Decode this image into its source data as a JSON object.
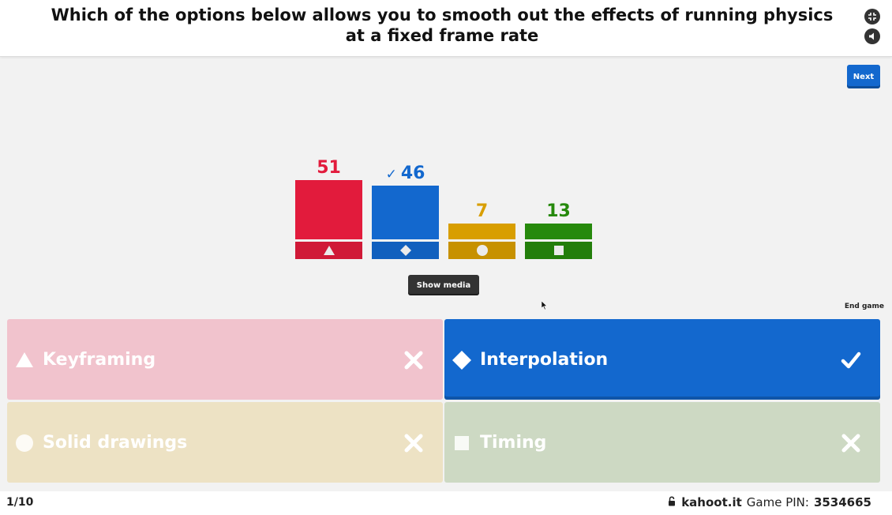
{
  "question": {
    "text": "Which of the options below allows you to smooth out the effects of running physics at a fixed frame rate"
  },
  "header_buttons": [
    {
      "icon": "fullscreen-exit-icon"
    },
    {
      "icon": "volume-icon"
    }
  ],
  "controls": {
    "next_label": "Next",
    "show_media_label": "Show media",
    "end_game_label": "End game"
  },
  "colors": {
    "red": "#e21b3c",
    "blue": "#1368ce",
    "yellow": "#d89e00",
    "green": "#26890c"
  },
  "chart_data": {
    "type": "bar",
    "categories": [
      "Keyframing",
      "Interpolation",
      "Solid drawings",
      "Timing"
    ],
    "values": [
      51,
      46,
      7,
      13
    ],
    "correct_index": 1,
    "shapes": [
      "triangle",
      "diamond",
      "circle",
      "square"
    ],
    "colors": [
      "#e21b3c",
      "#1368ce",
      "#d89e00",
      "#26890c"
    ],
    "correct_mark": "✓"
  },
  "answers": [
    {
      "label": "Keyframing",
      "shape": "triangle",
      "correct": false
    },
    {
      "label": "Interpolation",
      "shape": "diamond",
      "correct": true
    },
    {
      "label": "Solid drawings",
      "shape": "circle",
      "correct": false
    },
    {
      "label": "Timing",
      "shape": "square",
      "correct": false
    }
  ],
  "footer": {
    "counter": "1/10",
    "site": "kahoot.it",
    "pin_label": "Game PIN:",
    "pin_value": "3534665"
  }
}
